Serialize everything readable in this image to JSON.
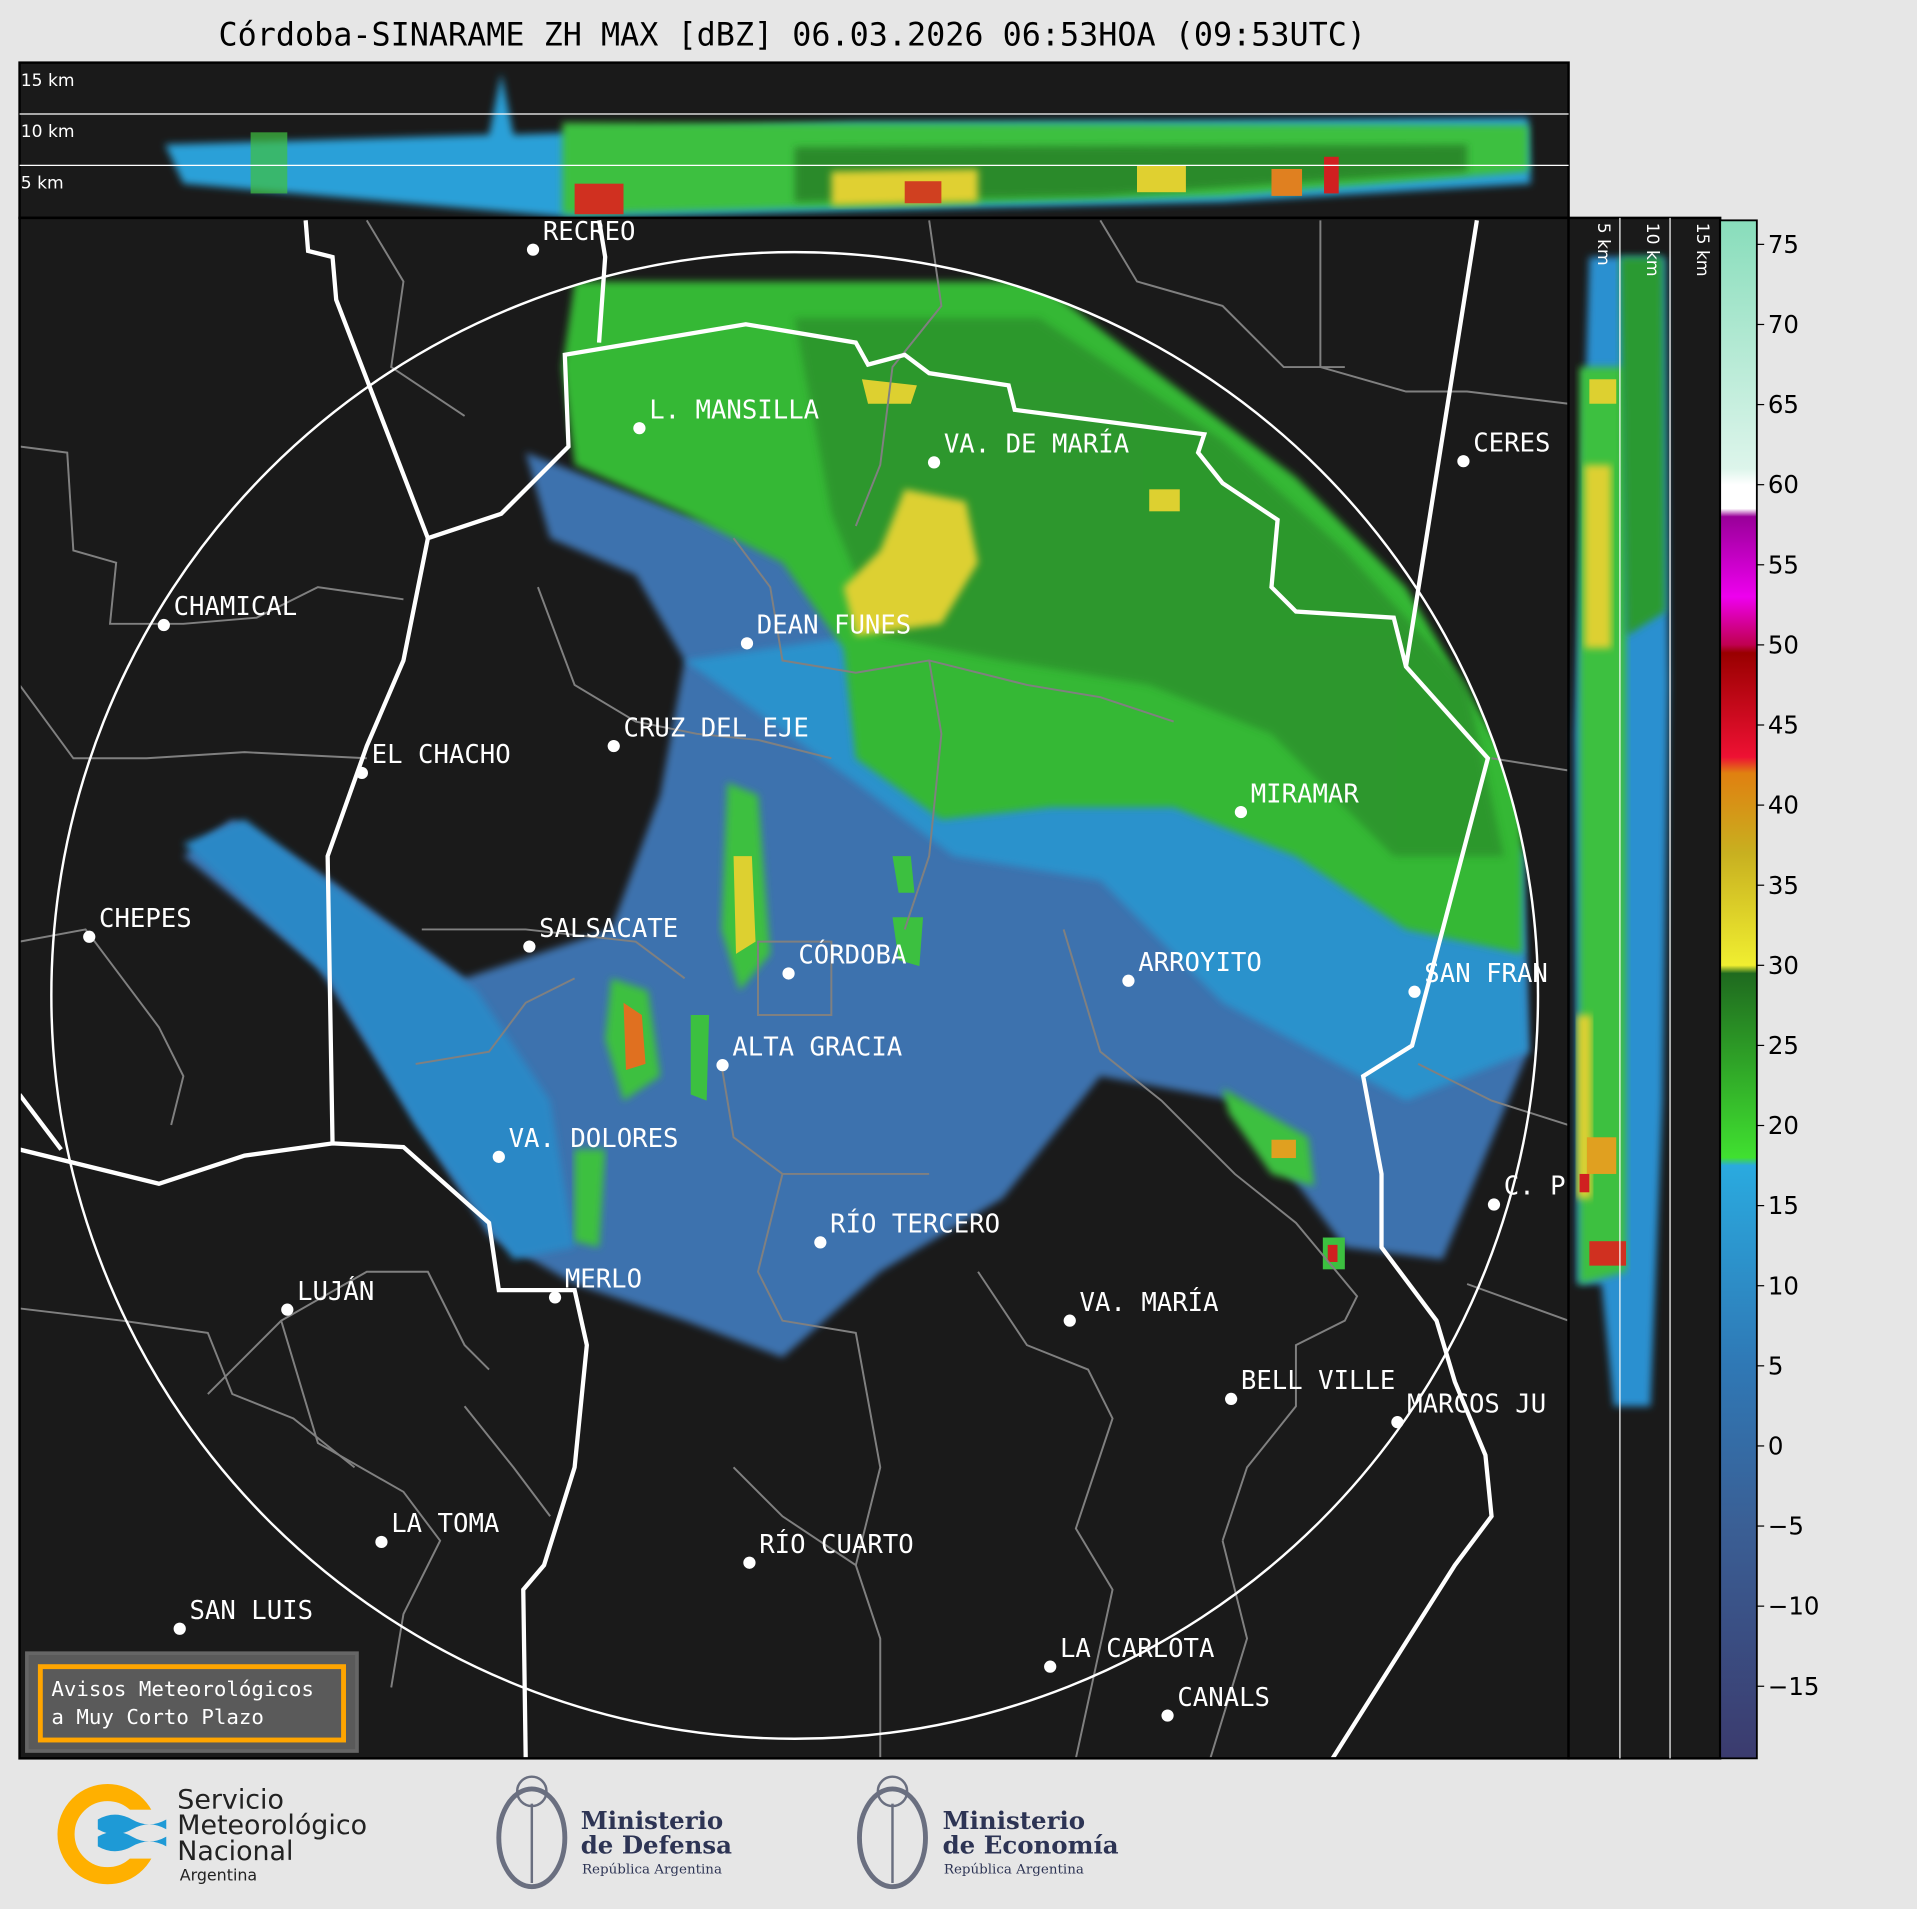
{
  "title": "Córdoba-SINARAME ZH MAX [dBZ] 06.03.2026 06:53HOA (09:53UTC)",
  "top_panel": {
    "levels": [
      "15 km",
      "10 km",
      "5 km"
    ]
  },
  "right_panel": {
    "levels": [
      "5 km",
      "10 km",
      "15 km"
    ]
  },
  "colorbar": {
    "ticks": [
      "75",
      "70",
      "65",
      "60",
      "55",
      "50",
      "45",
      "40",
      "35",
      "30",
      "25",
      "20",
      "15",
      "10",
      "5",
      "0",
      "−5",
      "−10",
      "−15"
    ],
    "range": [
      -19.5,
      76.5
    ],
    "stops": [
      {
        "v": -19.5,
        "c": "#3b3b6e"
      },
      {
        "v": -5,
        "c": "#3a5f95"
      },
      {
        "v": 5,
        "c": "#2f78b5"
      },
      {
        "v": 17.5,
        "c": "#2aaadf"
      },
      {
        "v": 18,
        "c": "#40e030"
      },
      {
        "v": 29.5,
        "c": "#1f6a1f"
      },
      {
        "v": 30,
        "c": "#f0ee30"
      },
      {
        "v": 37,
        "c": "#c8b020"
      },
      {
        "v": 42,
        "c": "#e08010"
      },
      {
        "v": 43,
        "c": "#ee1133"
      },
      {
        "v": 49.5,
        "c": "#990000"
      },
      {
        "v": 50,
        "c": "#c00050"
      },
      {
        "v": 53,
        "c": "#ee00ee"
      },
      {
        "v": 58,
        "c": "#990099"
      },
      {
        "v": 58.5,
        "c": "#ffffff"
      },
      {
        "v": 60,
        "c": "#ffffff"
      },
      {
        "v": 61,
        "c": "#ddf5eb"
      },
      {
        "v": 76.5,
        "c": "#88ddbb"
      }
    ]
  },
  "cities": [
    {
      "name": "RECREO"
    },
    {
      "name": "L. MANSILLA"
    },
    {
      "name": "VA. DE MARÍA"
    },
    {
      "name": "CERES"
    },
    {
      "name": "CHAMICAL"
    },
    {
      "name": "DEAN FUNES"
    },
    {
      "name": "CRUZ DEL EJE"
    },
    {
      "name": "EL CHACHO"
    },
    {
      "name": "MIRAMAR"
    },
    {
      "name": "CHEPES"
    },
    {
      "name": "SALSACATE"
    },
    {
      "name": "CÓRDOBA"
    },
    {
      "name": "ARROYITO"
    },
    {
      "name": "SAN FRAN"
    },
    {
      "name": "ALTA GRACIA"
    },
    {
      "name": "VA. DOLORES"
    },
    {
      "name": "C. P"
    },
    {
      "name": "RÍO TERCERO"
    },
    {
      "name": "MERLO"
    },
    {
      "name": "LUJÁN"
    },
    {
      "name": "VA. MARÍA"
    },
    {
      "name": "BELL VILLE"
    },
    {
      "name": "MARCOS JU"
    },
    {
      "name": "LA TOMA"
    },
    {
      "name": "RÍO CUARTO"
    },
    {
      "name": "SAN LUIS"
    },
    {
      "name": "LA CARLOTA"
    },
    {
      "name": "CANALS"
    }
  ],
  "warning_box": {
    "line1": "Avisos Meteorológicos",
    "line2": "a Muy Corto Plazo",
    "border_color": "#ffa500"
  },
  "logos": {
    "smn": {
      "line1": "Servicio",
      "line2": "Meteorológico",
      "line3": "Nacional",
      "line4": "Argentina"
    },
    "defensa": {
      "line1": "Ministerio",
      "line2": "de Defensa",
      "line3": "República Argentina"
    },
    "economia": {
      "line1": "Ministerio",
      "line2": "de Economía",
      "line3": "República Argentina"
    }
  }
}
